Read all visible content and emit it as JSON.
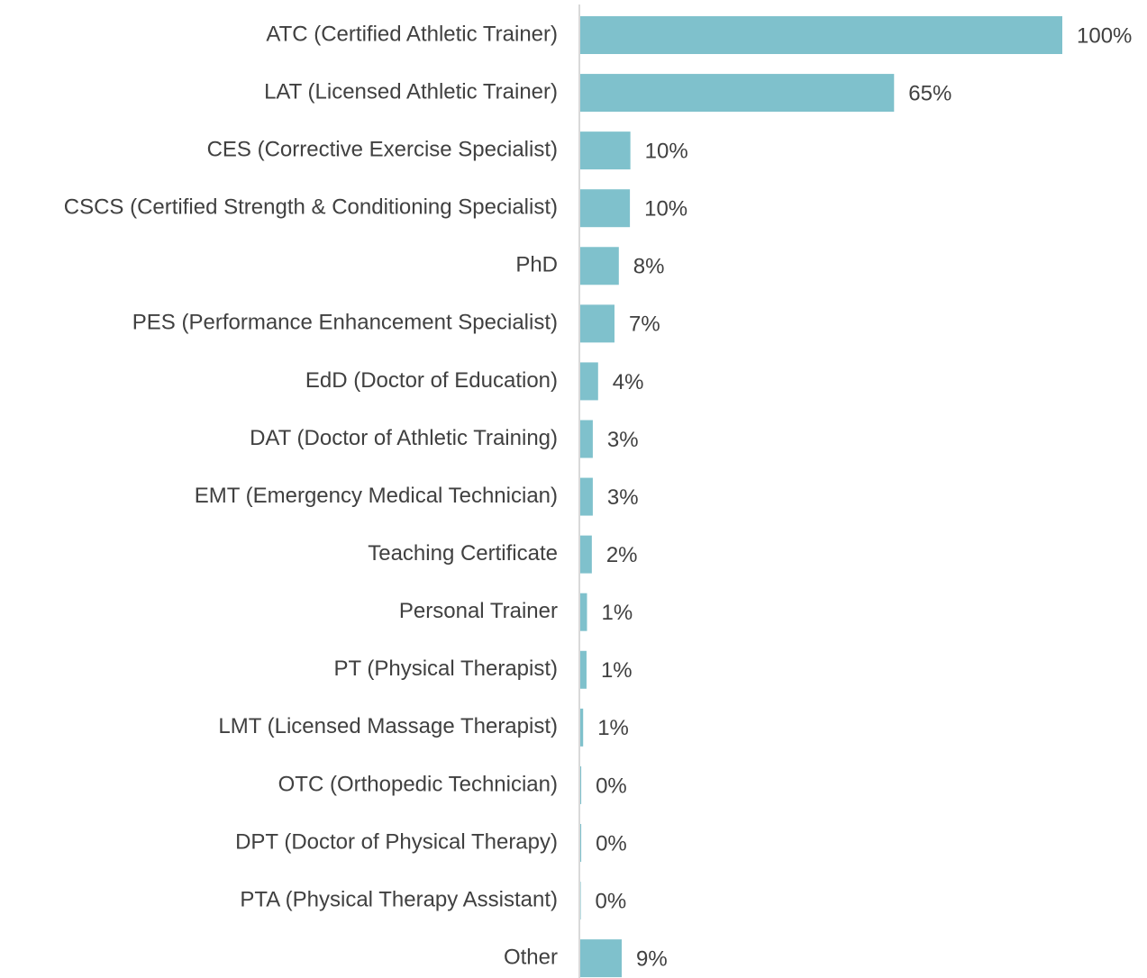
{
  "chart_data": {
    "type": "bar",
    "orientation": "horizontal",
    "color": "#7fc1cc",
    "categories": [
      "ATC (Certified Athletic Trainer)",
      "LAT (Licensed Athletic Trainer)",
      "CES (Corrective Exercise Specialist)",
      "CSCS (Certified Strength & Conditioning Specialist)",
      "PhD",
      "PES (Performance Enhancement Specialist)",
      "EdD (Doctor of Education)",
      "DAT (Doctor of Athletic Training)",
      "EMT (Emergency Medical Technician)",
      "Teaching Certificate",
      "Personal Trainer",
      "PT (Physical Therapist)",
      "LMT (Licensed Massage Therapist)",
      "OTC (Orthopedic Technician)",
      "DPT (Doctor of Physical Therapy)",
      "PTA (Physical Therapy Assistant)",
      "Other"
    ],
    "values": [
      100,
      65.1,
      10.4,
      10.3,
      8.0,
      7.1,
      3.7,
      2.6,
      2.6,
      2.4,
      1.4,
      1.3,
      0.6,
      0.2,
      0.2,
      0.1,
      8.6
    ],
    "value_labels": [
      "100%",
      "65%",
      "10%",
      "10%",
      "8%",
      "7%",
      "4%",
      "3%",
      "3%",
      "2%",
      "1%",
      "1%",
      "1%",
      "0%",
      "0%",
      "0%",
      "9%"
    ]
  }
}
